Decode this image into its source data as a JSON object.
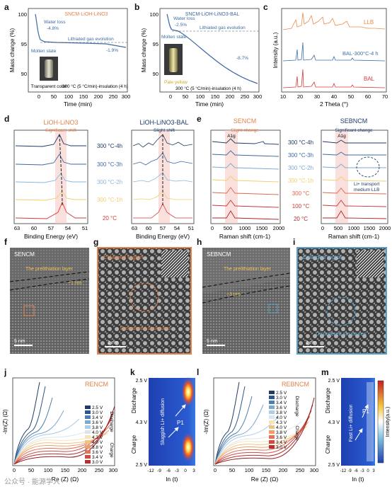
{
  "figure": {
    "panel_letters": [
      "a",
      "b",
      "c",
      "d",
      "e",
      "f",
      "g",
      "h",
      "i",
      "j",
      "k",
      "l",
      "m"
    ],
    "watermark": "公众号 · 能源学人"
  },
  "panel_a": {
    "title": "SNCM-LiOH-LiNO3",
    "ylabel": "Mass change (%)",
    "xlabel": "Time (min)",
    "yticks": [
      "100",
      "95",
      "90"
    ],
    "xticks": [
      "0",
      "50",
      "100",
      "150",
      "200",
      "250",
      "300"
    ],
    "ann_water": "Water loss",
    "ann_water_val": "-4.8%",
    "ann_molten": "Molten state",
    "ann_gas": "Lithiated gas evolution",
    "ann_end": "-1.9%",
    "ann_vial": "Transparent color",
    "ann_cond": "300 °C (5 °C/min)-insulation (4 h)"
  },
  "panel_b": {
    "title": "SNCM-LiOH-LiNO3-BAL",
    "ylabel": "Mass change (%)",
    "xlabel": "Time (min)",
    "yticks": [
      "100",
      "95",
      "90"
    ],
    "xticks": [
      "0",
      "50",
      "100",
      "150",
      "200",
      "250",
      "300"
    ],
    "ann_water": "Water loss",
    "ann_water_val": "-2.5%",
    "ann_molten": "Molten state",
    "ann_gas": "Lithiated gas evolution",
    "ann_end": "-8.7%",
    "ann_vial": "Pale yellow",
    "ann_cond": "300 °C (5 °C/min)-insulation (4 h)"
  },
  "panel_c": {
    "ylabel": "Intensity (a.u.)",
    "xlabel": "2 Theta (°)",
    "xticks": [
      "10",
      "20",
      "30",
      "40",
      "50",
      "60",
      "70"
    ],
    "labels": [
      "LLB",
      "BAL-300°C-4 h",
      "BAL"
    ],
    "colors": [
      "#f08a4b",
      "#3f6fa8",
      "#d63a3a"
    ]
  },
  "panel_d": {
    "left_title": "LiOH-LiNO3",
    "left_sub": "Significant shift",
    "right_title": "LiOH-LiNO3-BAL",
    "right_sub": "Slight shift",
    "xlabel": "Binding Energy (eV)",
    "xticks": [
      "63",
      "60",
      "57",
      "54",
      "51"
    ],
    "rows": [
      "300 °C-4h",
      "300 °C-3h",
      "300 °C-2h",
      "300 °C-1h",
      "20 °C"
    ],
    "row_colors": [
      "#1f3b66",
      "#3d6aa3",
      "#8bb6da",
      "#f2cf6b",
      "#d63a3a"
    ]
  },
  "panel_e": {
    "left_title": "SENCM",
    "left_sub": "Slight change",
    "right_title": "SEBNCM",
    "right_sub": "Significant change",
    "peak": "A1g",
    "xlabel": "Raman shift (cm-1)",
    "xticks": [
      "0",
      "500",
      "1000",
      "1500",
      "2000"
    ],
    "rows": [
      "300 °C-4h",
      "300 °C-3h",
      "300 °C-2h",
      "300 °C-1h",
      "300 °C",
      "100 °C",
      "20 °C"
    ],
    "row_colors": [
      "#1f3b66",
      "#3d6aa3",
      "#7fa8d1",
      "#f2cf6b",
      "#e2664b",
      "#c93a3a",
      "#b0262a"
    ],
    "ann_li": "Li+ transport",
    "ann_llb": "medium LLB"
  },
  "panel_f": {
    "tag": "SENCM",
    "layer": "The prelithiation layer",
    "thick": "~1 nm",
    "scale": "5 nm"
  },
  "panel_g": {
    "tag": "Enlarged region",
    "struct": "Disordered structures",
    "scale": "1 nm"
  },
  "panel_h": {
    "tag": "SEBNCM",
    "layer": "The prelithiation layer",
    "thick": "~3 nm",
    "scale": "5 nm"
  },
  "panel_i": {
    "tag": "Enlarged region",
    "struct": "Disordered structures",
    "scale": "1 nm"
  },
  "panel_j": {
    "title": "RENCM",
    "ylabel": "-Im(Z) (Ω)",
    "xlabel": "Re (Z) (Ω)",
    "xticks": [
      "0",
      "50",
      "100",
      "150",
      "200",
      "250",
      "300"
    ],
    "legend": [
      "2.5 V",
      "3.0 V",
      "3.4 V",
      "3.6 V",
      "3.8 V",
      "4.0 V",
      "4.3 V",
      "4.0 V",
      "3.8 V",
      "3.6 V",
      "3.4 V",
      "3.0 V",
      "2.5 V"
    ],
    "legend_colors": [
      "#1f3b66",
      "#2f568a",
      "#4f7fb0",
      "#7ea9cf",
      "#aecde4",
      "#d9e6ef",
      "#f6e3b8",
      "#f4c27f",
      "#ef9e6d",
      "#e4715a",
      "#d04b48",
      "#b7302f",
      "#8e1e22"
    ],
    "side_discharge": "Discharge",
    "side_charge": "Charge"
  },
  "panel_k": {
    "ylabel_top": "Discharge",
    "ylabel_bot": "Charge",
    "yticks": [
      "2.5 V",
      "4.3 V",
      "2.5 V"
    ],
    "xlabel": "ln (t)",
    "xticks": [
      "-12",
      "-9",
      "-6",
      "-3",
      "0",
      "3"
    ],
    "peak": "P1",
    "annot": "Sluggish Li+ diffusion"
  },
  "panel_l": {
    "title": "REBNCM",
    "ylabel": "-Im(Z) (Ω)",
    "xlabel": "Re (Z) (Ω)",
    "xticks": [
      "0",
      "50",
      "100",
      "150",
      "200",
      "250",
      "300"
    ],
    "legend": [
      "2.5 V",
      "3.0 V",
      "3.4 V",
      "3.6 V",
      "3.8 V",
      "4.0 V",
      "4.3 V",
      "4.0 V",
      "3.8 V",
      "3.6 V",
      "3.4 V",
      "3.0 V",
      "2.5 V"
    ],
    "side_discharge": "Discharge",
    "side_charge": "Charge"
  },
  "panel_m": {
    "ylabel_top": "Discharge",
    "ylabel_bot": "Charge",
    "yticks": [
      "2.5 V",
      "4.3 V",
      "2.5 V"
    ],
    "xlabel": "ln (t)",
    "xticks": [
      "-12",
      "-9",
      "-6",
      "-3",
      "0",
      "3"
    ],
    "peak": "P1",
    "annot": "Fast Li+ diffusion",
    "cbar_label": "Intensity(a.u.)"
  },
  "chart_data": [
    {
      "type": "line",
      "title": "SNCM-LiOH-LiNO3",
      "xlabel": "Time (min)",
      "ylabel": "Mass change (%)",
      "xlim": [
        -25,
        300
      ],
      "ylim": [
        88,
        101
      ],
      "series": [
        {
          "x": [
            0,
            5,
            10,
            15,
            20,
            30,
            50,
            100,
            150,
            200,
            250,
            280,
            290
          ],
          "values": [
            100,
            99,
            96,
            95.4,
            95.2,
            95.2,
            95.1,
            95.0,
            94.8,
            94.5,
            94.0,
            93.5,
            93.3
          ]
        }
      ]
    },
    {
      "type": "line",
      "title": "SNCM-LiOH-LiNO3-BAL",
      "xlabel": "Time (min)",
      "ylabel": "Mass change (%)",
      "xlim": [
        -25,
        300
      ],
      "ylim": [
        88,
        101
      ],
      "series": [
        {
          "x": [
            0,
            5,
            10,
            15,
            20,
            30,
            50,
            100,
            150,
            200,
            250,
            290
          ],
          "values": [
            100,
            99.5,
            98,
            97.5,
            97.4,
            97.2,
            96.5,
            94.5,
            92.8,
            91.5,
            90.3,
            89
          ]
        }
      ]
    },
    {
      "type": "line",
      "xlabel": "2 Theta (°)",
      "ylabel": "Intensity (a.u.)",
      "xlim": [
        10,
        70
      ],
      "series": [
        {
          "name": "LLB"
        },
        {
          "name": "BAL-300°C-4 h"
        },
        {
          "name": "BAL"
        }
      ]
    },
    {
      "type": "heatmap",
      "xlabel": "ln (t)",
      "xlim": [
        -12,
        3
      ],
      "note_peak": "P1"
    }
  ]
}
